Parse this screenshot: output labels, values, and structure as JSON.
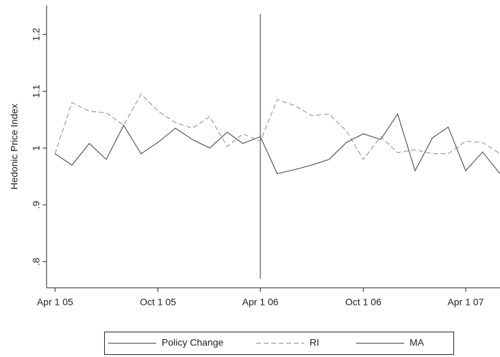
{
  "chart_data": {
    "type": "line",
    "y_label": "Hedonic Price Index",
    "x": [
      "2005-04-01",
      "2005-05-01",
      "2005-06-01",
      "2005-07-01",
      "2005-08-01",
      "2005-09-01",
      "2005-10-01",
      "2005-11-01",
      "2005-12-01",
      "2006-01-01",
      "2006-02-01",
      "2006-03-01",
      "2006-04-01",
      "2006-05-01",
      "2006-06-01",
      "2006-07-01",
      "2006-08-01",
      "2006-09-01",
      "2006-10-01",
      "2006-11-01",
      "2006-12-01",
      "2007-01-01",
      "2007-02-01",
      "2007-03-01",
      "2007-04-01",
      "2007-05-01",
      "2007-06-01"
    ],
    "series": [
      {
        "name": "Policy Change",
        "color": "#555555",
        "dash": "solid",
        "x": [
          "2006-04-01",
          "2006-04-01"
        ],
        "values": [
          1.236,
          0.77
        ]
      },
      {
        "name": "RI",
        "color": "#999999",
        "dash": "dashed",
        "values": [
          0.99,
          1.08,
          1.065,
          1.062,
          1.04,
          1.095,
          1.065,
          1.045,
          1.035,
          1.055,
          1.003,
          1.025,
          1.012,
          1.085,
          1.075,
          1.057,
          1.06,
          1.03,
          0.98,
          1.02,
          0.992,
          0.997,
          0.99,
          0.99,
          1.012,
          1.01,
          0.99
        ]
      },
      {
        "name": "MA",
        "color": "#555555",
        "dash": "solid",
        "values": [
          0.99,
          0.97,
          1.008,
          0.98,
          1.04,
          0.99,
          1.01,
          1.035,
          1.015,
          1.0,
          1.028,
          1.008,
          1.02,
          0.955,
          0.962,
          0.97,
          0.98,
          1.01,
          1.025,
          1.015,
          1.06,
          0.96,
          1.018,
          1.037,
          0.96,
          0.993,
          0.955
        ]
      }
    ],
    "xlim": [
      "2005-03-17",
      "2007-06-01"
    ],
    "xticks": [
      {
        "value": "2005-04-01",
        "label": "Apr 1 05"
      },
      {
        "value": "2005-10-01",
        "label": "Oct 1 05"
      },
      {
        "value": "2006-04-01",
        "label": "Apr 1 06"
      },
      {
        "value": "2006-10-01",
        "label": "Oct 1 06"
      },
      {
        "value": "2007-04-01",
        "label": "Apr 1 07"
      }
    ],
    "ylim": [
      0.754,
      1.251
    ],
    "yticks": [
      {
        "value": 0.8,
        "label": ".8"
      },
      {
        "value": 0.9,
        "label": ".9"
      },
      {
        "value": 1,
        "label": "1"
      },
      {
        "value": 1.1,
        "label": "1.1"
      },
      {
        "value": 1.2,
        "label": "1.2"
      }
    ],
    "grid": false
  }
}
